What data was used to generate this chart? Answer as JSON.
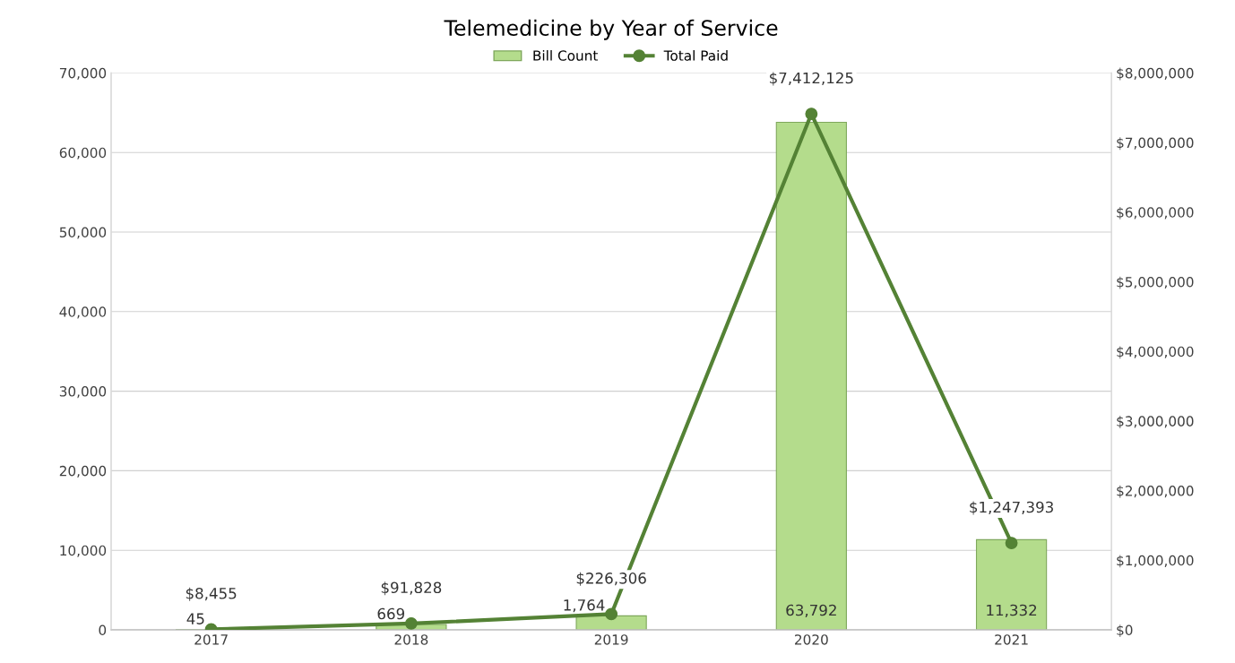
{
  "chart_data": {
    "type": "bar",
    "title": "Telemedicine by Year of Service",
    "categories": [
      "2017",
      "2018",
      "2019",
      "2020",
      "2021"
    ],
    "series": [
      {
        "name": "Bill Count",
        "color": "#b4dc8c",
        "values": [
          45,
          669,
          1764,
          63792,
          11332
        ],
        "value_labels": [
          "45",
          "669",
          "1,764",
          "63,792",
          "11,332"
        ]
      },
      {
        "name": "Total Paid",
        "type": "line",
        "axis": "y2",
        "color": "#548235",
        "marker": "circle",
        "values": [
          8455,
          91828,
          226306,
          7412125,
          1247393
        ],
        "value_labels": [
          "$8,455",
          "$91,828",
          "$226,306",
          "$7,412,125",
          "$1,247,393"
        ]
      }
    ],
    "ylim": [
      0,
      70000
    ],
    "yticks": [
      {
        "value": 0,
        "label": "0"
      },
      {
        "value": 10000,
        "label": "10,000"
      },
      {
        "value": 20000,
        "label": "20,000"
      },
      {
        "value": 30000,
        "label": "30,000"
      },
      {
        "value": 40000,
        "label": "40,000"
      },
      {
        "value": 50000,
        "label": "50,000"
      },
      {
        "value": 60000,
        "label": "60,000"
      },
      {
        "value": 70000,
        "label": "70,000"
      }
    ],
    "y2lim": [
      0,
      8000000
    ],
    "y2ticks": [
      {
        "value": 0,
        "label": "$0"
      },
      {
        "value": 1000000,
        "label": "$1,000,000"
      },
      {
        "value": 2000000,
        "label": "$2,000,000"
      },
      {
        "value": 3000000,
        "label": "$3,000,000"
      },
      {
        "value": 4000000,
        "label": "$4,000,000"
      },
      {
        "value": 5000000,
        "label": "$5,000,000"
      },
      {
        "value": 6000000,
        "label": "$6,000,000"
      },
      {
        "value": 7000000,
        "label": "$7,000,000"
      },
      {
        "value": 8000000,
        "label": "$8,000,000"
      }
    ],
    "grid": "y",
    "legend": "top"
  }
}
